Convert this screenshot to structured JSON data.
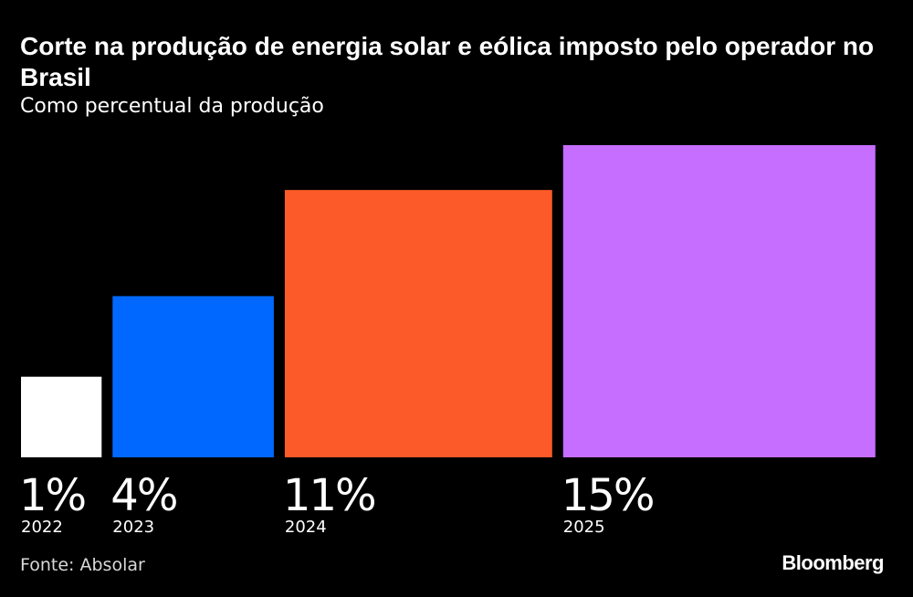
{
  "header": {
    "title": "Corte na produção de energia solar e eólica imposto pelo operador no Brasil",
    "subtitle": "Como percentual da produção"
  },
  "footer": {
    "source": "Fonte: Absolar",
    "brand": "Bloomberg"
  },
  "chart_data": {
    "type": "bar",
    "title": "Corte na produção de energia solar e eólica imposto pelo operador no Brasil",
    "subtitle": "Como percentual da produção",
    "categories": [
      "2022",
      "2023",
      "2024",
      "2025"
    ],
    "values": [
      1,
      4,
      11,
      15
    ],
    "value_labels": [
      "1%",
      "4%",
      "11%",
      "15%"
    ],
    "colors": [
      "#ffffff",
      "#0068ff",
      "#fc5a28",
      "#c56eff"
    ],
    "unit": "%",
    "grid": false,
    "legend": "none"
  }
}
